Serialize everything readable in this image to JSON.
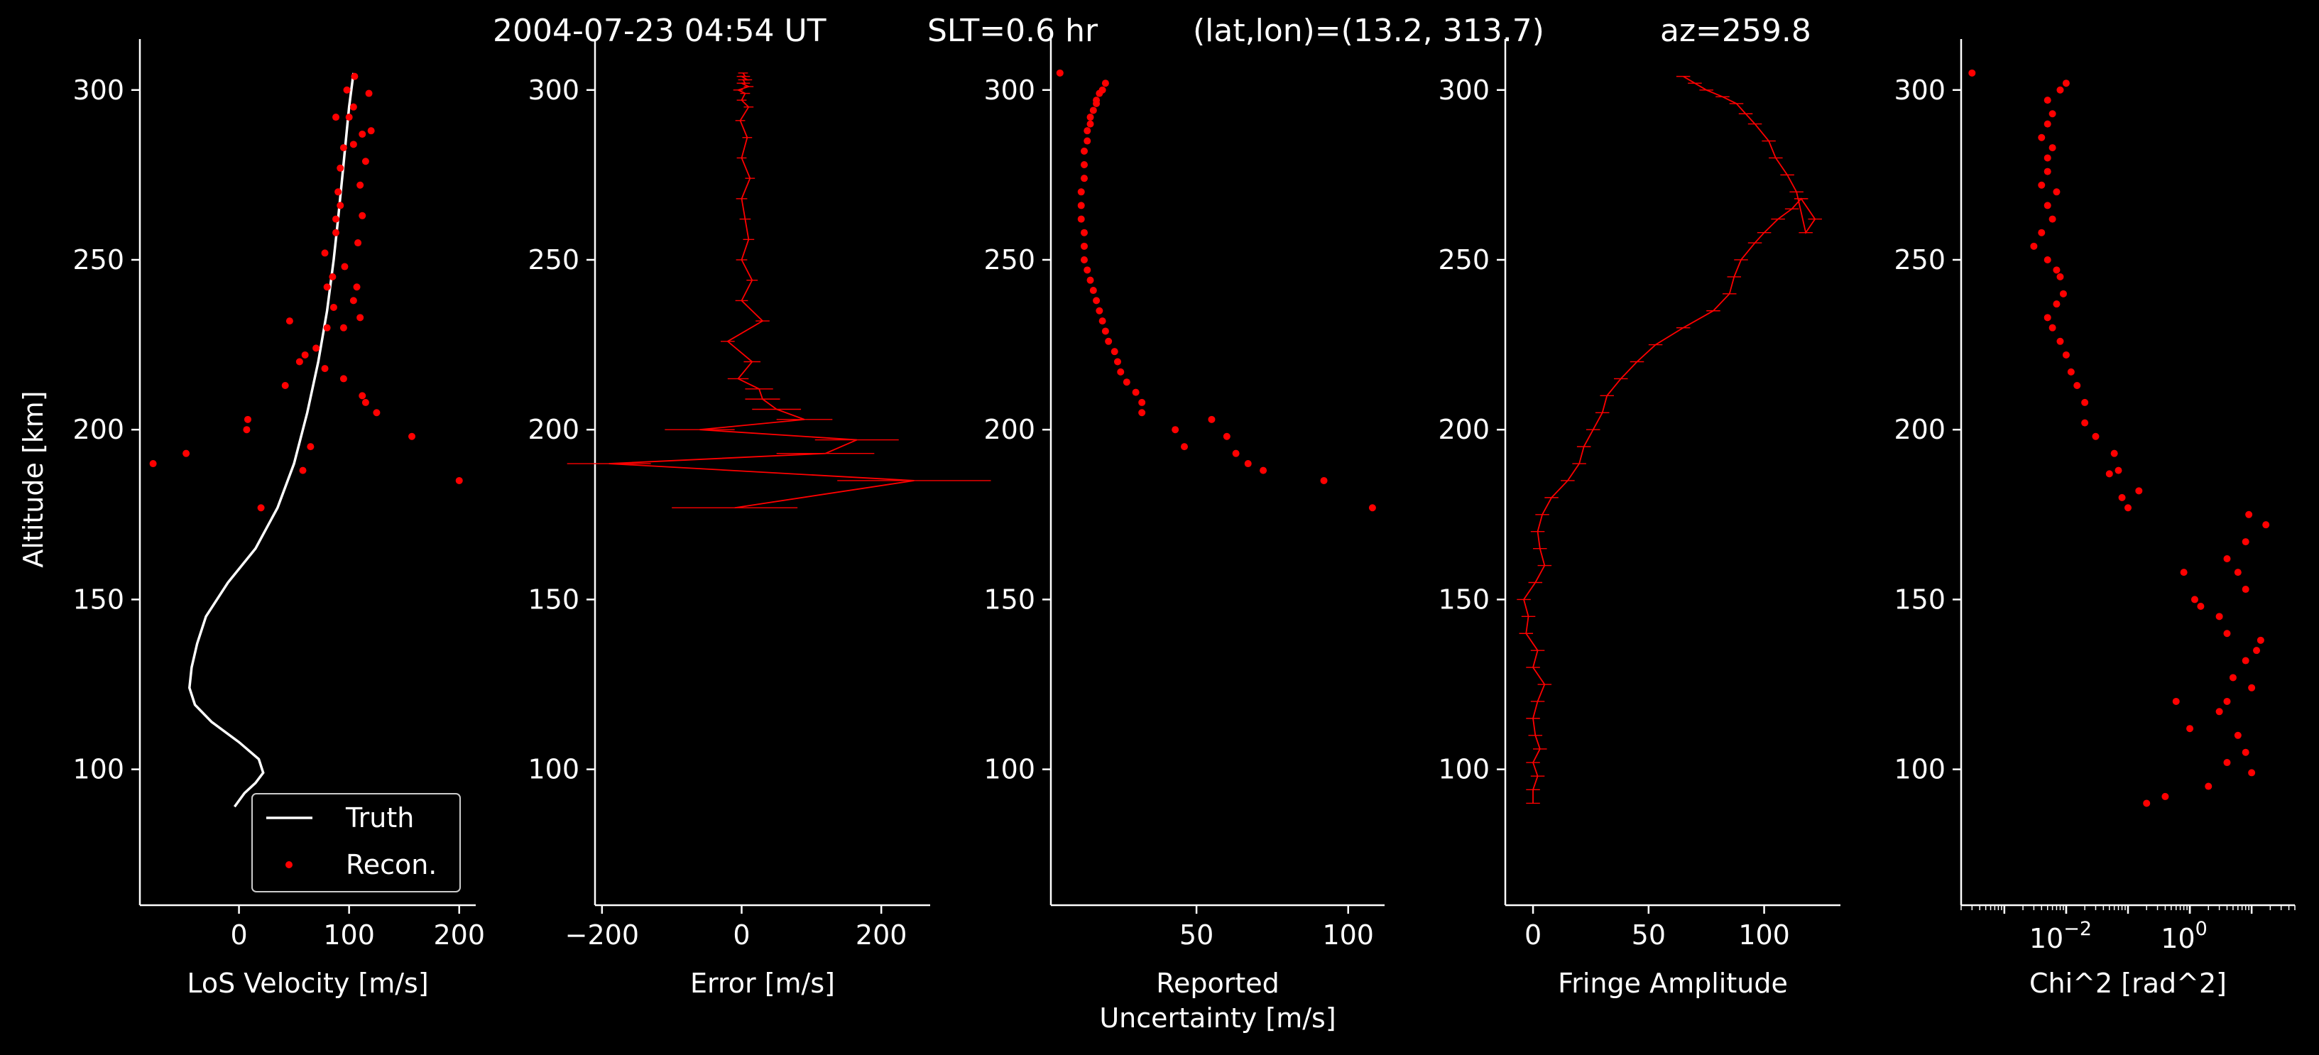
{
  "header": {
    "time": "2004-07-23 04:54 UT",
    "slt": "SLT=0.6 hr",
    "latlon": "(lat,lon)=(13.2, 313.7)",
    "az": "az=259.8"
  },
  "colors": {
    "background": "#000000",
    "axis": "#ffffff",
    "truth": "#ffffff",
    "recon": "#ff0000",
    "error": "#ff0000"
  },
  "chart_data": [
    {
      "type": "line",
      "xlabel": "LoS Velocity [m/s]",
      "ylabel": "Altitude [km]",
      "xlim": [
        -90,
        215
      ],
      "ylim": [
        60,
        315
      ],
      "xticks": [
        0,
        100,
        200
      ],
      "yticks": [
        100,
        150,
        200,
        250,
        300
      ],
      "legend": {
        "placement": "lower-right",
        "entries": [
          "Truth",
          "Recon."
        ]
      },
      "series": [
        {
          "name": "Truth",
          "style": "line",
          "x": [
            -4,
            5,
            15,
            22,
            18,
            0,
            -25,
            -40,
            -45,
            -43,
            -38,
            -30,
            -10,
            15,
            35,
            50,
            62,
            72,
            80,
            86,
            90,
            94,
            97,
            100,
            102,
            104
          ],
          "y": [
            89,
            93,
            96,
            99,
            103,
            108,
            114,
            119,
            124,
            130,
            137,
            145,
            155,
            165,
            177,
            190,
            205,
            220,
            235,
            250,
            262,
            275,
            285,
            295,
            300,
            305
          ]
        },
        {
          "name": "Recon.",
          "style": "points",
          "x": [
            200,
            -78,
            -48,
            58,
            20,
            65,
            157,
            125,
            115,
            112,
            95,
            7,
            8,
            42,
            55,
            78,
            60,
            70,
            46,
            80,
            95,
            110,
            86,
            104,
            80,
            107,
            85,
            96,
            108,
            78,
            88,
            112,
            88,
            92,
            90,
            110,
            92,
            115,
            95,
            104,
            112,
            120,
            88,
            100,
            104,
            118,
            98,
            105
          ],
          "y": [
            185,
            190,
            193,
            188,
            177,
            195,
            198,
            205,
            208,
            210,
            215,
            200,
            203,
            213,
            220,
            218,
            222,
            224,
            232,
            230,
            230,
            233,
            236,
            238,
            242,
            242,
            245,
            248,
            255,
            252,
            258,
            263,
            262,
            266,
            270,
            272,
            277,
            279,
            283,
            284,
            287,
            288,
            292,
            292,
            295,
            299,
            300,
            304
          ]
        }
      ]
    },
    {
      "type": "line",
      "xlabel": "Error [m/s]",
      "xlim": [
        -210,
        270
      ],
      "ylim": [
        60,
        315
      ],
      "xticks": [
        -200,
        0,
        200
      ],
      "yticks": [
        100,
        150,
        200,
        250,
        300
      ],
      "series": [
        {
          "name": "",
          "style": "line-with-xerr",
          "x": [
            -10,
            247,
            -190,
            120,
            165,
            -60,
            90,
            50,
            30,
            25,
            -5,
            15,
            -20,
            30,
            0,
            15,
            0,
            10,
            5,
            0,
            12,
            0,
            8,
            -2,
            10,
            0,
            5,
            -5,
            10,
            0,
            5,
            2,
            8,
            0,
            5,
            2
          ],
          "y": [
            177,
            185,
            190,
            193,
            197,
            200,
            203,
            206,
            209,
            212,
            215,
            220,
            226,
            232,
            238,
            244,
            250,
            256,
            262,
            268,
            274,
            280,
            286,
            291,
            295,
            297,
            299,
            300,
            301,
            302,
            302,
            303,
            303,
            304,
            304,
            305
          ],
          "xerr": [
            90,
            110,
            60,
            70,
            60,
            50,
            40,
            35,
            25,
            20,
            15,
            12,
            10,
            10,
            9,
            8,
            8,
            8,
            8,
            8,
            7,
            7,
            7,
            7,
            7,
            7,
            7,
            7,
            7,
            7,
            7,
            7,
            7,
            7,
            7,
            7
          ]
        }
      ]
    },
    {
      "type": "scatter",
      "xlabel": "Reported Uncertainty [m/s]",
      "xlim": [
        2,
        112
      ],
      "ylim": [
        60,
        315
      ],
      "xticks": [
        50,
        100
      ],
      "yticks": [
        100,
        150,
        200,
        250,
        300
      ],
      "series": [
        {
          "name": "",
          "x": [
            108,
            92,
            72,
            67,
            63,
            60,
            55,
            46,
            43,
            32,
            32,
            30,
            27,
            25,
            24,
            23,
            21,
            20,
            19,
            18,
            17,
            16,
            15,
            14,
            13,
            13,
            13,
            12,
            12,
            12,
            13,
            13,
            13,
            14,
            14,
            15,
            15,
            16,
            17,
            17,
            18,
            19,
            20,
            5
          ],
          "y": [
            177,
            185,
            188,
            190,
            193,
            198,
            203,
            195,
            200,
            205,
            208,
            211,
            214,
            217,
            220,
            223,
            226,
            229,
            232,
            235,
            238,
            241,
            244,
            247,
            250,
            254,
            258,
            262,
            266,
            270,
            274,
            278,
            282,
            285,
            288,
            290,
            292,
            294,
            296,
            297,
            299,
            300,
            302,
            305
          ]
        }
      ]
    },
    {
      "type": "line",
      "xlabel": "Fringe Amplitude",
      "xlim": [
        -12,
        133
      ],
      "ylim": [
        60,
        315
      ],
      "xticks": [
        0,
        50,
        100
      ],
      "yticks": [
        100,
        150,
        200,
        250,
        300
      ],
      "series": [
        {
          "name": "",
          "style": "line-with-xerr",
          "x": [
            0,
            0,
            2,
            0,
            3,
            1,
            0,
            2,
            5,
            0,
            2,
            -3,
            -2,
            -4,
            1,
            5,
            3,
            2,
            4,
            8,
            15,
            20,
            22,
            26,
            30,
            32,
            38,
            45,
            53,
            65,
            78,
            85,
            87,
            90,
            96,
            100,
            106,
            112,
            116,
            122,
            118,
            114,
            110,
            105,
            102,
            96,
            92,
            88,
            82,
            75,
            70,
            65
          ],
          "y": [
            90,
            94,
            98,
            102,
            106,
            110,
            115,
            120,
            125,
            130,
            135,
            140,
            145,
            150,
            155,
            160,
            165,
            170,
            175,
            180,
            185,
            190,
            195,
            200,
            205,
            210,
            215,
            220,
            225,
            230,
            235,
            240,
            245,
            250,
            255,
            258,
            262,
            265,
            268,
            262,
            258,
            270,
            275,
            280,
            285,
            290,
            293,
            296,
            298,
            300,
            302,
            304
          ],
          "xerr": [
            3,
            3,
            3,
            3,
            3,
            3,
            3,
            3,
            3,
            3,
            3,
            3,
            3,
            3,
            3,
            3,
            3,
            3,
            3,
            3,
            3,
            3,
            3,
            3,
            3,
            3,
            3,
            3,
            3,
            3,
            3,
            3,
            3,
            3,
            3,
            3,
            3,
            3,
            3,
            3,
            3,
            3,
            3,
            3,
            3,
            3,
            3,
            3,
            3,
            3,
            3,
            3
          ]
        }
      ]
    },
    {
      "type": "scatter",
      "xlabel": "Chi^2 [rad^2]",
      "xlim": [
        0.0002,
        50
      ],
      "xscale": "log",
      "ylim": [
        60,
        315
      ],
      "xticks": [
        0.01,
        1
      ],
      "xticklabels": [
        "10",
        "10"
      ],
      "xtickexps": [
        "−2",
        "0"
      ],
      "yticks": [
        100,
        150,
        200,
        250,
        300
      ],
      "series": [
        {
          "name": "",
          "x": [
            17,
            9,
            8,
            4,
            6,
            8,
            0.8,
            1.2,
            1.5,
            3,
            4,
            12,
            14,
            8,
            5,
            10,
            4,
            3,
            0.6,
            1.0,
            6,
            8,
            4,
            10,
            2,
            0.4,
            0.2,
            0.15,
            0.08,
            0.1,
            0.05,
            0.07,
            0.06,
            0.03,
            0.02,
            0.02,
            0.015,
            0.012,
            0.01,
            0.008,
            0.006,
            0.005,
            0.007,
            0.009,
            0.008,
            0.007,
            0.005,
            0.003,
            0.004,
            0.006,
            0.005,
            0.007,
            0.004,
            0.005,
            0.005,
            0.006,
            0.004,
            0.005,
            0.006,
            0.005,
            0.008,
            0.01,
            0.0003
          ],
          "y": [
            172,
            175,
            167,
            162,
            158,
            153,
            158,
            150,
            148,
            145,
            140,
            135,
            138,
            132,
            127,
            124,
            120,
            117,
            120,
            112,
            110,
            105,
            102,
            99,
            95,
            92,
            90,
            182,
            180,
            177,
            187,
            188,
            193,
            198,
            202,
            208,
            213,
            217,
            222,
            226,
            230,
            233,
            237,
            240,
            245,
            247,
            250,
            254,
            258,
            262,
            266,
            270,
            272,
            276,
            280,
            283,
            286,
            290,
            293,
            297,
            300,
            302,
            305
          ]
        }
      ]
    }
  ]
}
